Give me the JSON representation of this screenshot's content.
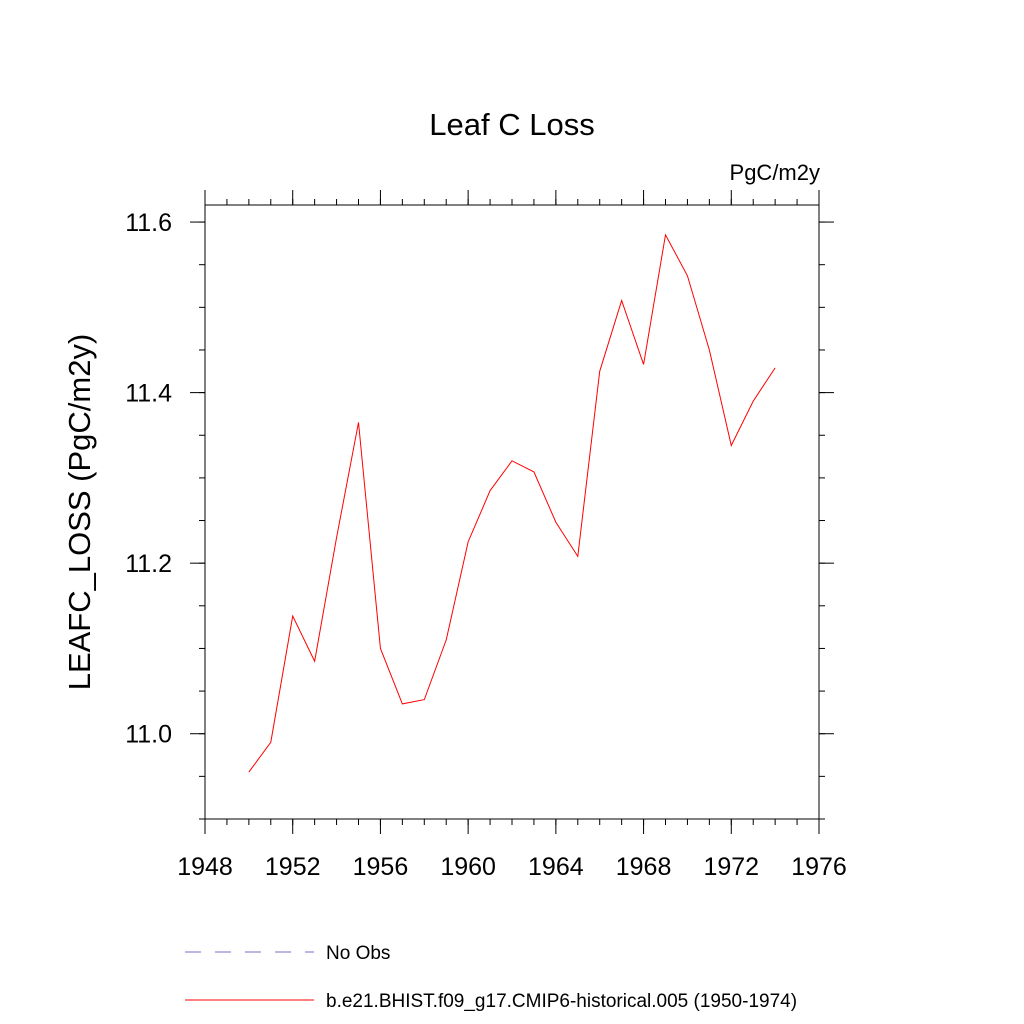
{
  "chart_data": {
    "type": "line",
    "title": "Leaf C Loss",
    "units_label": "PgC/m2y",
    "xlabel": "",
    "ylabel": "LEAFC_LOSS  (PgC/m2y)",
    "xlim": [
      1948,
      1976
    ],
    "ylim": [
      10.9,
      11.62
    ],
    "x_ticks": [
      1948,
      1952,
      1956,
      1960,
      1964,
      1968,
      1972,
      1976
    ],
    "y_ticks": [
      11.0,
      11.2,
      11.4,
      11.6
    ],
    "y_tick_labels": [
      "11.0",
      "11.2",
      "11.4",
      "11.6"
    ],
    "x_minor_step": 1,
    "y_minor_step": 0.05,
    "grid": false,
    "legend_position": "bottom",
    "x": [
      1950,
      1951,
      1952,
      1953,
      1954,
      1955,
      1956,
      1957,
      1958,
      1959,
      1960,
      1961,
      1962,
      1963,
      1964,
      1965,
      1966,
      1967,
      1968,
      1969,
      1970,
      1971,
      1972,
      1973,
      1974
    ],
    "series": [
      {
        "name": "b.e21.BHIST.f09_g17.CMIP6-historical.005 (1950-1974)",
        "color": "#ff0000",
        "style": "solid",
        "values": [
          10.955,
          10.99,
          11.138,
          11.085,
          11.23,
          11.365,
          11.1,
          11.035,
          11.04,
          11.11,
          11.225,
          11.285,
          11.32,
          11.307,
          11.248,
          11.208,
          11.425,
          11.508,
          11.433,
          11.585,
          11.537,
          11.45,
          11.338,
          11.39,
          11.429
        ]
      }
    ],
    "legend": [
      {
        "label": "No Obs",
        "color": "#7b6cc7",
        "style": "dashed"
      },
      {
        "label": "b.e21.BHIST.f09_g17.CMIP6-historical.005 (1950-1974)",
        "color": "#ff0000",
        "style": "solid"
      }
    ]
  }
}
